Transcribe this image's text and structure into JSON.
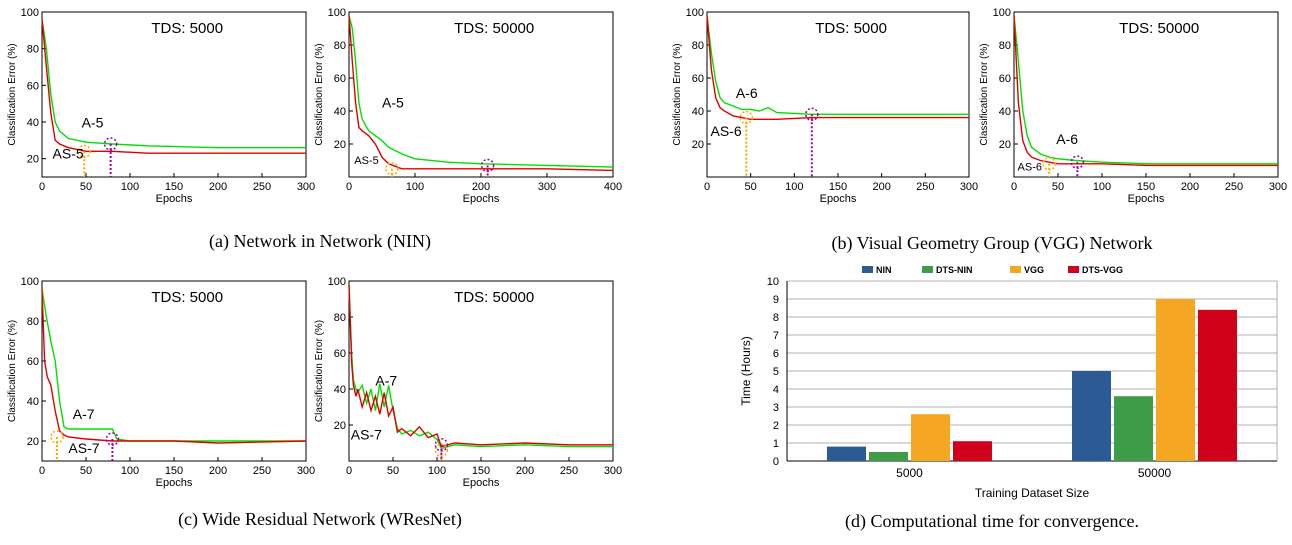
{
  "captions": {
    "a": "(a) Network in Network (NIN)",
    "b": "(b) Visual Geometry Group (VGG) Network",
    "c": "(c) Wide Residual Network (WResNet)",
    "d": "(d) Computational time for convergence."
  },
  "chart_data": [
    {
      "type": "line",
      "id": "nin-5000",
      "title": "TDS: 5000",
      "xlabel": "Epochs",
      "ylabel": "Classification Error (%)",
      "xlim": [
        0,
        300
      ],
      "ylim": [
        10,
        100
      ],
      "xticks": [
        0,
        50,
        100,
        150,
        200,
        250,
        300
      ],
      "yticks": [
        20,
        40,
        60,
        80,
        100
      ],
      "series": [
        {
          "color": "#00e000",
          "x": [
            0,
            5,
            10,
            15,
            20,
            30,
            50,
            80,
            120,
            200,
            300
          ],
          "y": [
            96,
            80,
            55,
            40,
            35,
            31,
            29,
            28,
            27,
            26,
            26
          ]
        },
        {
          "color": "#e00000",
          "x": [
            0,
            5,
            10,
            15,
            20,
            30,
            50,
            80,
            120,
            200,
            300
          ],
          "y": [
            96,
            70,
            45,
            30,
            28,
            26,
            24,
            24,
            23,
            23,
            23
          ]
        }
      ],
      "annotations": [
        {
          "text": "A-5",
          "x": 45,
          "y": 37
        },
        {
          "text": "AS-5",
          "x": 12,
          "y": 20
        }
      ],
      "markers": [
        {
          "x": 48,
          "y": 24,
          "color": "#ffa500"
        },
        {
          "x": 78,
          "y": 28,
          "color": "#a000a0"
        }
      ]
    },
    {
      "type": "line",
      "id": "nin-50000",
      "title": "TDS: 50000",
      "xlabel": "Epochs",
      "ylabel": "Classification Error (%)",
      "xlim": [
        0,
        400
      ],
      "ylim": [
        0,
        100
      ],
      "xticks": [
        0,
        100,
        200,
        300,
        400
      ],
      "yticks": [
        20,
        40,
        60,
        80,
        100
      ],
      "series": [
        {
          "color": "#00e000",
          "x": [
            0,
            5,
            10,
            15,
            20,
            30,
            40,
            50,
            60,
            80,
            100,
            150,
            200,
            300,
            400
          ],
          "y": [
            98,
            90,
            70,
            45,
            35,
            28,
            25,
            22,
            18,
            14,
            11,
            9,
            8,
            7,
            6
          ]
        },
        {
          "color": "#e00000",
          "x": [
            0,
            5,
            10,
            15,
            20,
            30,
            40,
            50,
            60,
            80,
            100,
            150,
            200,
            300,
            400
          ],
          "y": [
            98,
            70,
            45,
            30,
            28,
            25,
            20,
            12,
            8,
            5,
            5,
            5,
            5,
            5,
            4
          ]
        }
      ],
      "annotations": [
        {
          "text": "A-5",
          "x": 50,
          "y": 42
        },
        {
          "text": "AS-5",
          "x": 8,
          "y": 8
        }
      ],
      "markers": [
        {
          "x": 65,
          "y": 5,
          "color": "#ffa500"
        },
        {
          "x": 210,
          "y": 7,
          "color": "#a000a0"
        }
      ]
    },
    {
      "type": "line",
      "id": "vgg-5000",
      "title": "TDS: 5000",
      "xlabel": "Epochs",
      "ylabel": "Classification Error (%)",
      "xlim": [
        0,
        300
      ],
      "ylim": [
        0,
        100
      ],
      "xticks": [
        0,
        50,
        100,
        150,
        200,
        250,
        300
      ],
      "yticks": [
        20,
        40,
        60,
        80,
        100
      ],
      "series": [
        {
          "color": "#00e000",
          "x": [
            0,
            5,
            10,
            15,
            20,
            30,
            40,
            50,
            60,
            70,
            80,
            120,
            200,
            300
          ],
          "y": [
            98,
            75,
            58,
            48,
            45,
            43,
            41,
            41,
            40,
            42,
            39,
            38,
            38,
            38
          ]
        },
        {
          "color": "#e00000",
          "x": [
            0,
            5,
            10,
            15,
            20,
            30,
            40,
            50,
            80,
            120,
            200,
            300
          ],
          "y": [
            98,
            65,
            48,
            42,
            40,
            37,
            36,
            35,
            35,
            36,
            36,
            36
          ]
        }
      ],
      "annotations": [
        {
          "text": "A-6",
          "x": 33,
          "y": 48
        },
        {
          "text": "AS-6",
          "x": 4,
          "y": 25
        }
      ],
      "markers": [
        {
          "x": 45,
          "y": 36,
          "color": "#ffa500"
        },
        {
          "x": 120,
          "y": 38,
          "color": "#a000a0"
        }
      ]
    },
    {
      "type": "line",
      "id": "vgg-50000",
      "title": "TDS: 50000",
      "xlabel": "Epochs",
      "ylabel": "Classification Error (%)",
      "xlim": [
        0,
        300
      ],
      "ylim": [
        0,
        100
      ],
      "xticks": [
        0,
        50,
        100,
        150,
        200,
        250,
        300
      ],
      "yticks": [
        20,
        40,
        60,
        80,
        100
      ],
      "series": [
        {
          "color": "#00e000",
          "x": [
            0,
            5,
            10,
            15,
            20,
            30,
            40,
            50,
            70,
            100,
            150,
            200,
            300
          ],
          "y": [
            98,
            70,
            40,
            25,
            18,
            14,
            12,
            11,
            10,
            9,
            8,
            8,
            8
          ]
        },
        {
          "color": "#e00000",
          "x": [
            0,
            5,
            10,
            15,
            20,
            30,
            40,
            50,
            70,
            100,
            150,
            200,
            300
          ],
          "y": [
            98,
            45,
            22,
            15,
            12,
            10,
            9,
            8,
            8,
            8,
            7,
            7,
            7
          ]
        }
      ],
      "annotations": [
        {
          "text": "A-6",
          "x": 48,
          "y": 20
        },
        {
          "text": "AS-6",
          "x": 4,
          "y": 4
        }
      ],
      "markers": [
        {
          "x": 40,
          "y": 8,
          "color": "#ffa500"
        },
        {
          "x": 72,
          "y": 9,
          "color": "#a000a0"
        }
      ]
    },
    {
      "type": "line",
      "id": "wresnet-5000",
      "title": "TDS: 5000",
      "xlabel": "Epochs",
      "ylabel": "Classification Error (%)",
      "xlim": [
        0,
        300
      ],
      "ylim": [
        10,
        100
      ],
      "xticks": [
        0,
        50,
        100,
        150,
        200,
        250,
        300
      ],
      "yticks": [
        20,
        40,
        60,
        80,
        100
      ],
      "series": [
        {
          "color": "#00e000",
          "x": [
            0,
            5,
            10,
            15,
            20,
            25,
            30,
            50,
            80,
            85,
            100,
            150,
            200,
            300
          ],
          "y": [
            96,
            82,
            70,
            60,
            40,
            27,
            26,
            26,
            26,
            21,
            20,
            20,
            20,
            20
          ]
        },
        {
          "color": "#e00000",
          "x": [
            0,
            3,
            6,
            10,
            15,
            20,
            25,
            30,
            50,
            80,
            100,
            150,
            200,
            300
          ],
          "y": [
            96,
            60,
            52,
            48,
            35,
            25,
            23,
            22,
            21,
            20,
            20,
            20,
            19,
            20
          ]
        }
      ],
      "annotations": [
        {
          "text": "A-7",
          "x": 35,
          "y": 31
        },
        {
          "text": "AS-7",
          "x": 30,
          "y": 14
        }
      ],
      "markers": [
        {
          "x": 17,
          "y": 22,
          "color": "#ffa500"
        },
        {
          "x": 80,
          "y": 21,
          "color": "#a000a0"
        }
      ]
    },
    {
      "type": "line",
      "id": "wresnet-50000",
      "title": "TDS: 50000",
      "xlabel": "Epochs",
      "ylabel": "Classification Error (%)",
      "xlim": [
        0,
        300
      ],
      "ylim": [
        0,
        100
      ],
      "xticks": [
        0,
        50,
        100,
        150,
        200,
        250,
        300
      ],
      "yticks": [
        20,
        40,
        60,
        80,
        100
      ],
      "series": [
        {
          "color": "#00e000",
          "x": [
            0,
            3,
            5,
            8,
            10,
            15,
            20,
            25,
            30,
            35,
            40,
            45,
            50,
            55,
            60,
            70,
            80,
            90,
            100,
            105,
            120,
            150,
            200,
            250,
            300
          ],
          "y": [
            98,
            60,
            45,
            40,
            38,
            42,
            32,
            40,
            28,
            43,
            30,
            42,
            28,
            18,
            15,
            17,
            14,
            16,
            12,
            7,
            9,
            8,
            9,
            8,
            8
          ]
        },
        {
          "color": "#e00000",
          "x": [
            0,
            3,
            5,
            8,
            10,
            15,
            20,
            25,
            30,
            35,
            40,
            45,
            50,
            55,
            60,
            70,
            80,
            90,
            100,
            105,
            120,
            150,
            200,
            250,
            300
          ],
          "y": [
            98,
            55,
            42,
            36,
            40,
            30,
            38,
            28,
            36,
            26,
            38,
            25,
            30,
            16,
            18,
            14,
            19,
            13,
            15,
            8,
            10,
            9,
            10,
            9,
            9
          ]
        }
      ],
      "annotations": [
        {
          "text": "A-7",
          "x": 30,
          "y": 42
        },
        {
          "text": "AS-7",
          "x": 2,
          "y": 12
        }
      ],
      "markers": [
        {
          "x": 105,
          "y": 6,
          "color": "#ffa500"
        },
        {
          "x": 105,
          "y": 9,
          "color": "#a000a0"
        }
      ]
    },
    {
      "type": "bar",
      "id": "time-bars",
      "title": "",
      "xlabel": "Training Dataset Size",
      "ylabel": "Time (Hours)",
      "categories": [
        "5000",
        "50000"
      ],
      "ylim": [
        0,
        10
      ],
      "yticks": [
        0,
        1,
        2,
        3,
        4,
        5,
        6,
        7,
        8,
        9,
        10
      ],
      "grid": true,
      "legend": "top",
      "series": [
        {
          "name": "NIN",
          "color": "#2b5a95",
          "values": [
            0.8,
            5.0
          ]
        },
        {
          "name": "DTS-NIN",
          "color": "#3f9c48",
          "values": [
            0.5,
            3.6
          ]
        },
        {
          "name": "VGG",
          "color": "#f5a623",
          "values": [
            2.6,
            9.0
          ]
        },
        {
          "name": "DTS-VGG",
          "color": "#d0021b",
          "values": [
            1.1,
            8.4
          ]
        }
      ]
    }
  ]
}
